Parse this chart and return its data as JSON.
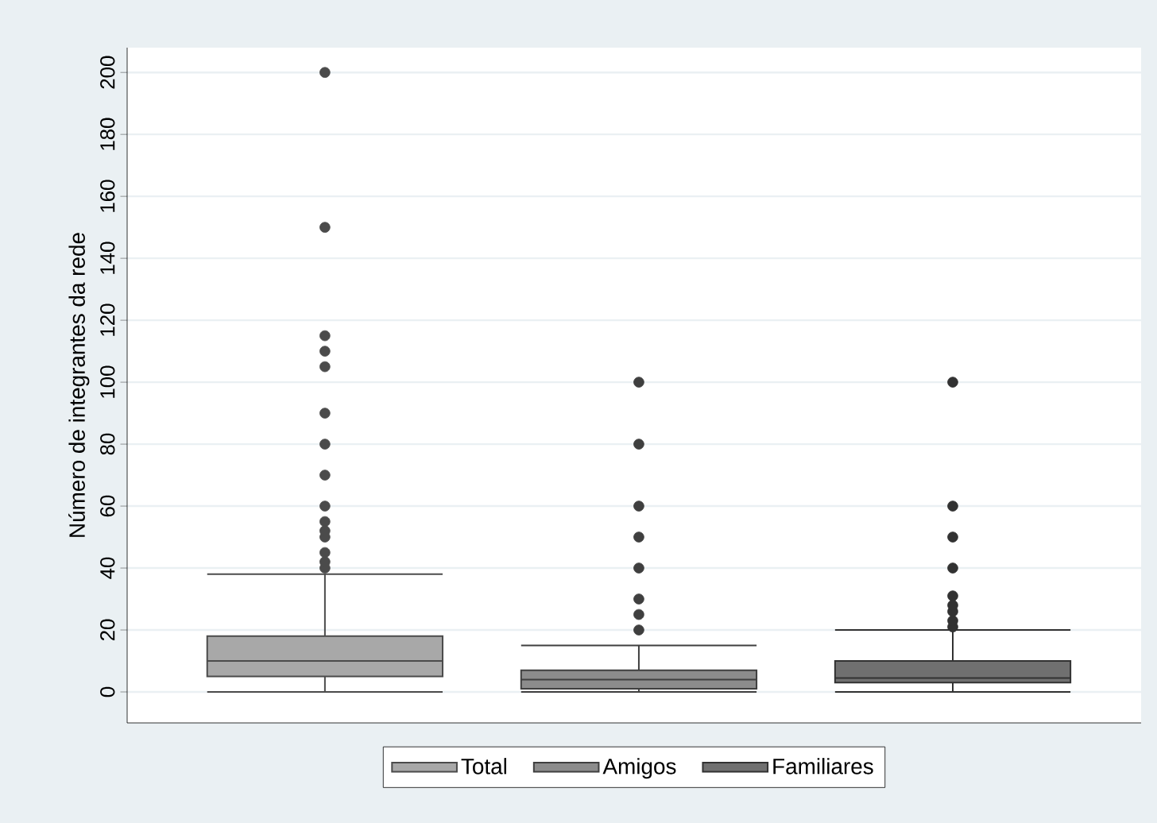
{
  "chart_data": {
    "type": "box",
    "ylabel": "Número de integrantes da rede",
    "categories": [
      null
    ],
    "series": [
      {
        "name": "Total",
        "color": "#a8a8a8",
        "boxes": [
          {
            "low": 0,
            "q1": 5,
            "median": 10,
            "q3": 18,
            "high": 38,
            "outliers": [
              40,
              42,
              45,
              50,
              52,
              55,
              60,
              70,
              80,
              90,
              105,
              110,
              115,
              150,
              200
            ]
          }
        ]
      },
      {
        "name": "Amigos",
        "color": "#8c8c8c",
        "boxes": [
          {
            "low": 0,
            "q1": 1,
            "median": 4,
            "q3": 7,
            "high": 15,
            "outliers": [
              20,
              25,
              30,
              40,
              50,
              60,
              80,
              100
            ]
          }
        ]
      },
      {
        "name": "Familiares",
        "color": "#707070",
        "boxes": [
          {
            "low": 0,
            "q1": 3,
            "median": 4.5,
            "q3": 10,
            "high": 20,
            "outliers": [
              21,
              23,
              26,
              28,
              31,
              40,
              50,
              60,
              100
            ]
          }
        ]
      }
    ],
    "ylim": [
      -10,
      208
    ],
    "yticks": [
      0,
      20,
      40,
      60,
      80,
      100,
      120,
      140,
      160,
      180,
      200
    ],
    "grid": "y",
    "legend": "bottom",
    "marker": "circle",
    "tick_labels": "y"
  }
}
